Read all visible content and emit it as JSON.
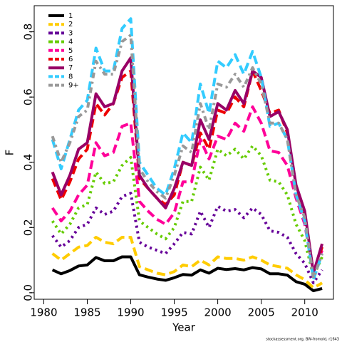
{
  "chart_data": {
    "type": "line",
    "x_label": "Year",
    "y_label": "F",
    "caption": "stockassessment.org, BW-fromold, r1643",
    "x": [
      1981,
      1982,
      1983,
      1984,
      1985,
      1986,
      1987,
      1988,
      1989,
      1990,
      1991,
      1992,
      1993,
      1994,
      1995,
      1996,
      1997,
      1998,
      1999,
      2000,
      2001,
      2002,
      2003,
      2004,
      2005,
      2006,
      2007,
      2008,
      2009,
      2010,
      2011,
      2012
    ],
    "xlim": [
      1978.9,
      2013.3
    ],
    "xticks": [
      1980,
      1985,
      1990,
      1995,
      2000,
      2005,
      2010
    ],
    "ylim": [
      -0.02,
      0.88
    ],
    "yticks": [
      {
        "value": 0,
        "label": "0.0"
      },
      0.2,
      0.4,
      0.6,
      0.8
    ],
    "legend": "top-left",
    "series": [
      {
        "name": "1",
        "color": "#000000",
        "style": "solid",
        "values": [
          0.07,
          0.058,
          0.068,
          0.082,
          0.085,
          0.108,
          0.098,
          0.098,
          0.11,
          0.11,
          0.055,
          0.048,
          0.042,
          0.038,
          0.046,
          0.056,
          0.054,
          0.07,
          0.06,
          0.075,
          0.071,
          0.074,
          0.07,
          0.077,
          0.073,
          0.058,
          0.058,
          0.054,
          0.034,
          0.026,
          0.006,
          0.013
        ]
      },
      {
        "name": "2",
        "color": "#ffcc00",
        "style": "dashed",
        "values": [
          0.12,
          0.1,
          0.12,
          0.14,
          0.145,
          0.17,
          0.155,
          0.15,
          0.17,
          0.17,
          0.08,
          0.07,
          0.06,
          0.055,
          0.065,
          0.085,
          0.08,
          0.1,
          0.085,
          0.11,
          0.105,
          0.105,
          0.1,
          0.11,
          0.1,
          0.085,
          0.08,
          0.075,
          0.055,
          0.04,
          0.015,
          0.03
        ]
      },
      {
        "name": "3",
        "color": "#660099",
        "style": "dotted",
        "values": [
          0.175,
          0.14,
          0.16,
          0.2,
          0.21,
          0.26,
          0.24,
          0.25,
          0.295,
          0.305,
          0.155,
          0.14,
          0.13,
          0.12,
          0.15,
          0.185,
          0.18,
          0.25,
          0.2,
          0.265,
          0.25,
          0.255,
          0.23,
          0.26,
          0.24,
          0.19,
          0.185,
          0.17,
          0.12,
          0.09,
          0.03,
          0.07
        ]
      },
      {
        "name": "4",
        "color": "#66cc00",
        "style": "dotted",
        "values": [
          0.22,
          0.18,
          0.21,
          0.26,
          0.27,
          0.37,
          0.335,
          0.34,
          0.39,
          0.415,
          0.22,
          0.2,
          0.18,
          0.165,
          0.2,
          0.28,
          0.28,
          0.385,
          0.345,
          0.44,
          0.42,
          0.44,
          0.41,
          0.45,
          0.42,
          0.345,
          0.34,
          0.3,
          0.21,
          0.16,
          0.05,
          0.11
        ]
      },
      {
        "name": "5",
        "color": "#ff0099",
        "style": "dashed",
        "values": [
          0.26,
          0.22,
          0.25,
          0.3,
          0.33,
          0.46,
          0.42,
          0.43,
          0.51,
          0.52,
          0.28,
          0.25,
          0.225,
          0.21,
          0.245,
          0.34,
          0.34,
          0.47,
          0.41,
          0.48,
          0.47,
          0.52,
          0.495,
          0.57,
          0.52,
          0.435,
          0.43,
          0.39,
          0.29,
          0.21,
          0.06,
          0.13
        ]
      },
      {
        "name": "6",
        "color": "#ee0000",
        "style": "dashed",
        "values": [
          0.35,
          0.285,
          0.34,
          0.41,
          0.44,
          0.58,
          0.545,
          0.58,
          0.66,
          0.68,
          0.35,
          0.32,
          0.29,
          0.27,
          0.3,
          0.4,
          0.39,
          0.49,
          0.44,
          0.56,
          0.55,
          0.6,
          0.57,
          0.68,
          0.62,
          0.55,
          0.56,
          0.49,
          0.32,
          0.24,
          0.06,
          0.14
        ]
      },
      {
        "name": "7",
        "color": "#990066",
        "style": "solid",
        "values": [
          0.37,
          0.3,
          0.36,
          0.44,
          0.46,
          0.61,
          0.57,
          0.58,
          0.68,
          0.72,
          0.36,
          0.32,
          0.29,
          0.26,
          0.32,
          0.4,
          0.39,
          0.53,
          0.47,
          0.58,
          0.56,
          0.62,
          0.58,
          0.68,
          0.66,
          0.54,
          0.555,
          0.5,
          0.33,
          0.25,
          0.06,
          0.15
        ]
      },
      {
        "name": "8",
        "color": "#33ccff",
        "style": "dashed",
        "values": [
          0.47,
          0.38,
          0.47,
          0.56,
          0.59,
          0.75,
          0.68,
          0.68,
          0.81,
          0.84,
          0.4,
          0.36,
          0.32,
          0.3,
          0.38,
          0.49,
          0.46,
          0.64,
          0.55,
          0.71,
          0.69,
          0.73,
          0.67,
          0.74,
          0.66,
          0.51,
          0.52,
          0.47,
          0.3,
          0.22,
          0.04,
          0.12
        ]
      },
      {
        "name": "9+",
        "color": "#999999",
        "style": "dashdot",
        "values": [
          0.48,
          0.4,
          0.46,
          0.54,
          0.56,
          0.71,
          0.67,
          0.67,
          0.77,
          0.79,
          0.38,
          0.34,
          0.31,
          0.29,
          0.36,
          0.45,
          0.43,
          0.58,
          0.5,
          0.64,
          0.63,
          0.67,
          0.63,
          0.69,
          0.64,
          0.52,
          0.52,
          0.47,
          0.3,
          0.23,
          0.045,
          0.12
        ]
      }
    ]
  }
}
